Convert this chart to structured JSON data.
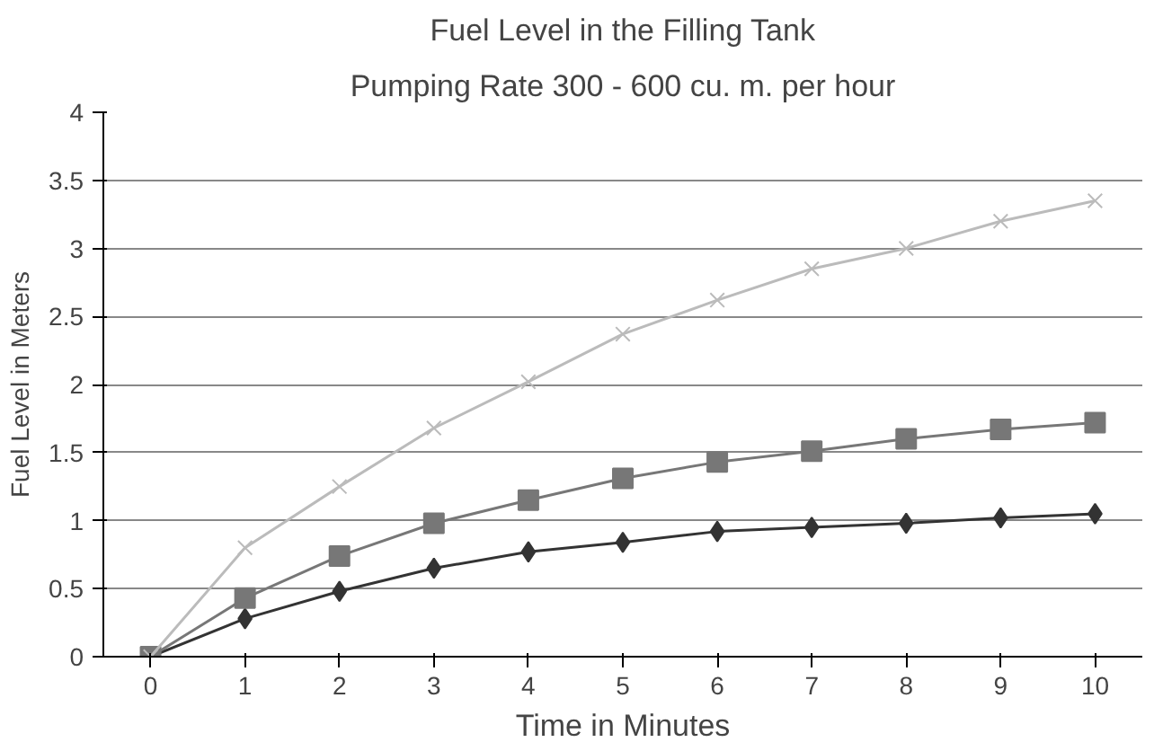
{
  "chart_data": {
    "type": "line",
    "title": "Fuel Level in the Filling Tank",
    "subtitle": "Pumping Rate 300 - 600 cu. m. per hour",
    "xlabel": "Time in Minutes",
    "ylabel": "Fuel Level in Meters",
    "categories": [
      "0",
      "1",
      "2",
      "3",
      "4",
      "5",
      "6",
      "7",
      "8",
      "9",
      "10"
    ],
    "series": [
      {
        "color": "#333333",
        "marker": "diamond",
        "values": [
          0,
          0.28,
          0.48,
          0.65,
          0.77,
          0.84,
          0.92,
          0.95,
          0.98,
          1.02,
          1.05
        ]
      },
      {
        "color": "#777777",
        "marker": "square",
        "values": [
          0,
          0.43,
          0.74,
          0.98,
          1.15,
          1.31,
          1.43,
          1.51,
          1.6,
          1.67,
          1.72
        ]
      },
      {
        "color": "#bbbbbb",
        "marker": "cross",
        "values": [
          0,
          0.8,
          1.25,
          1.68,
          2.02,
          2.37,
          2.62,
          2.85,
          3.0,
          3.2,
          3.35
        ]
      }
    ],
    "ylim": [
      0,
      4
    ],
    "yticks": [
      0,
      0.5,
      1,
      1.5,
      2,
      2.5,
      3,
      3.5,
      4
    ],
    "grid": "y"
  }
}
